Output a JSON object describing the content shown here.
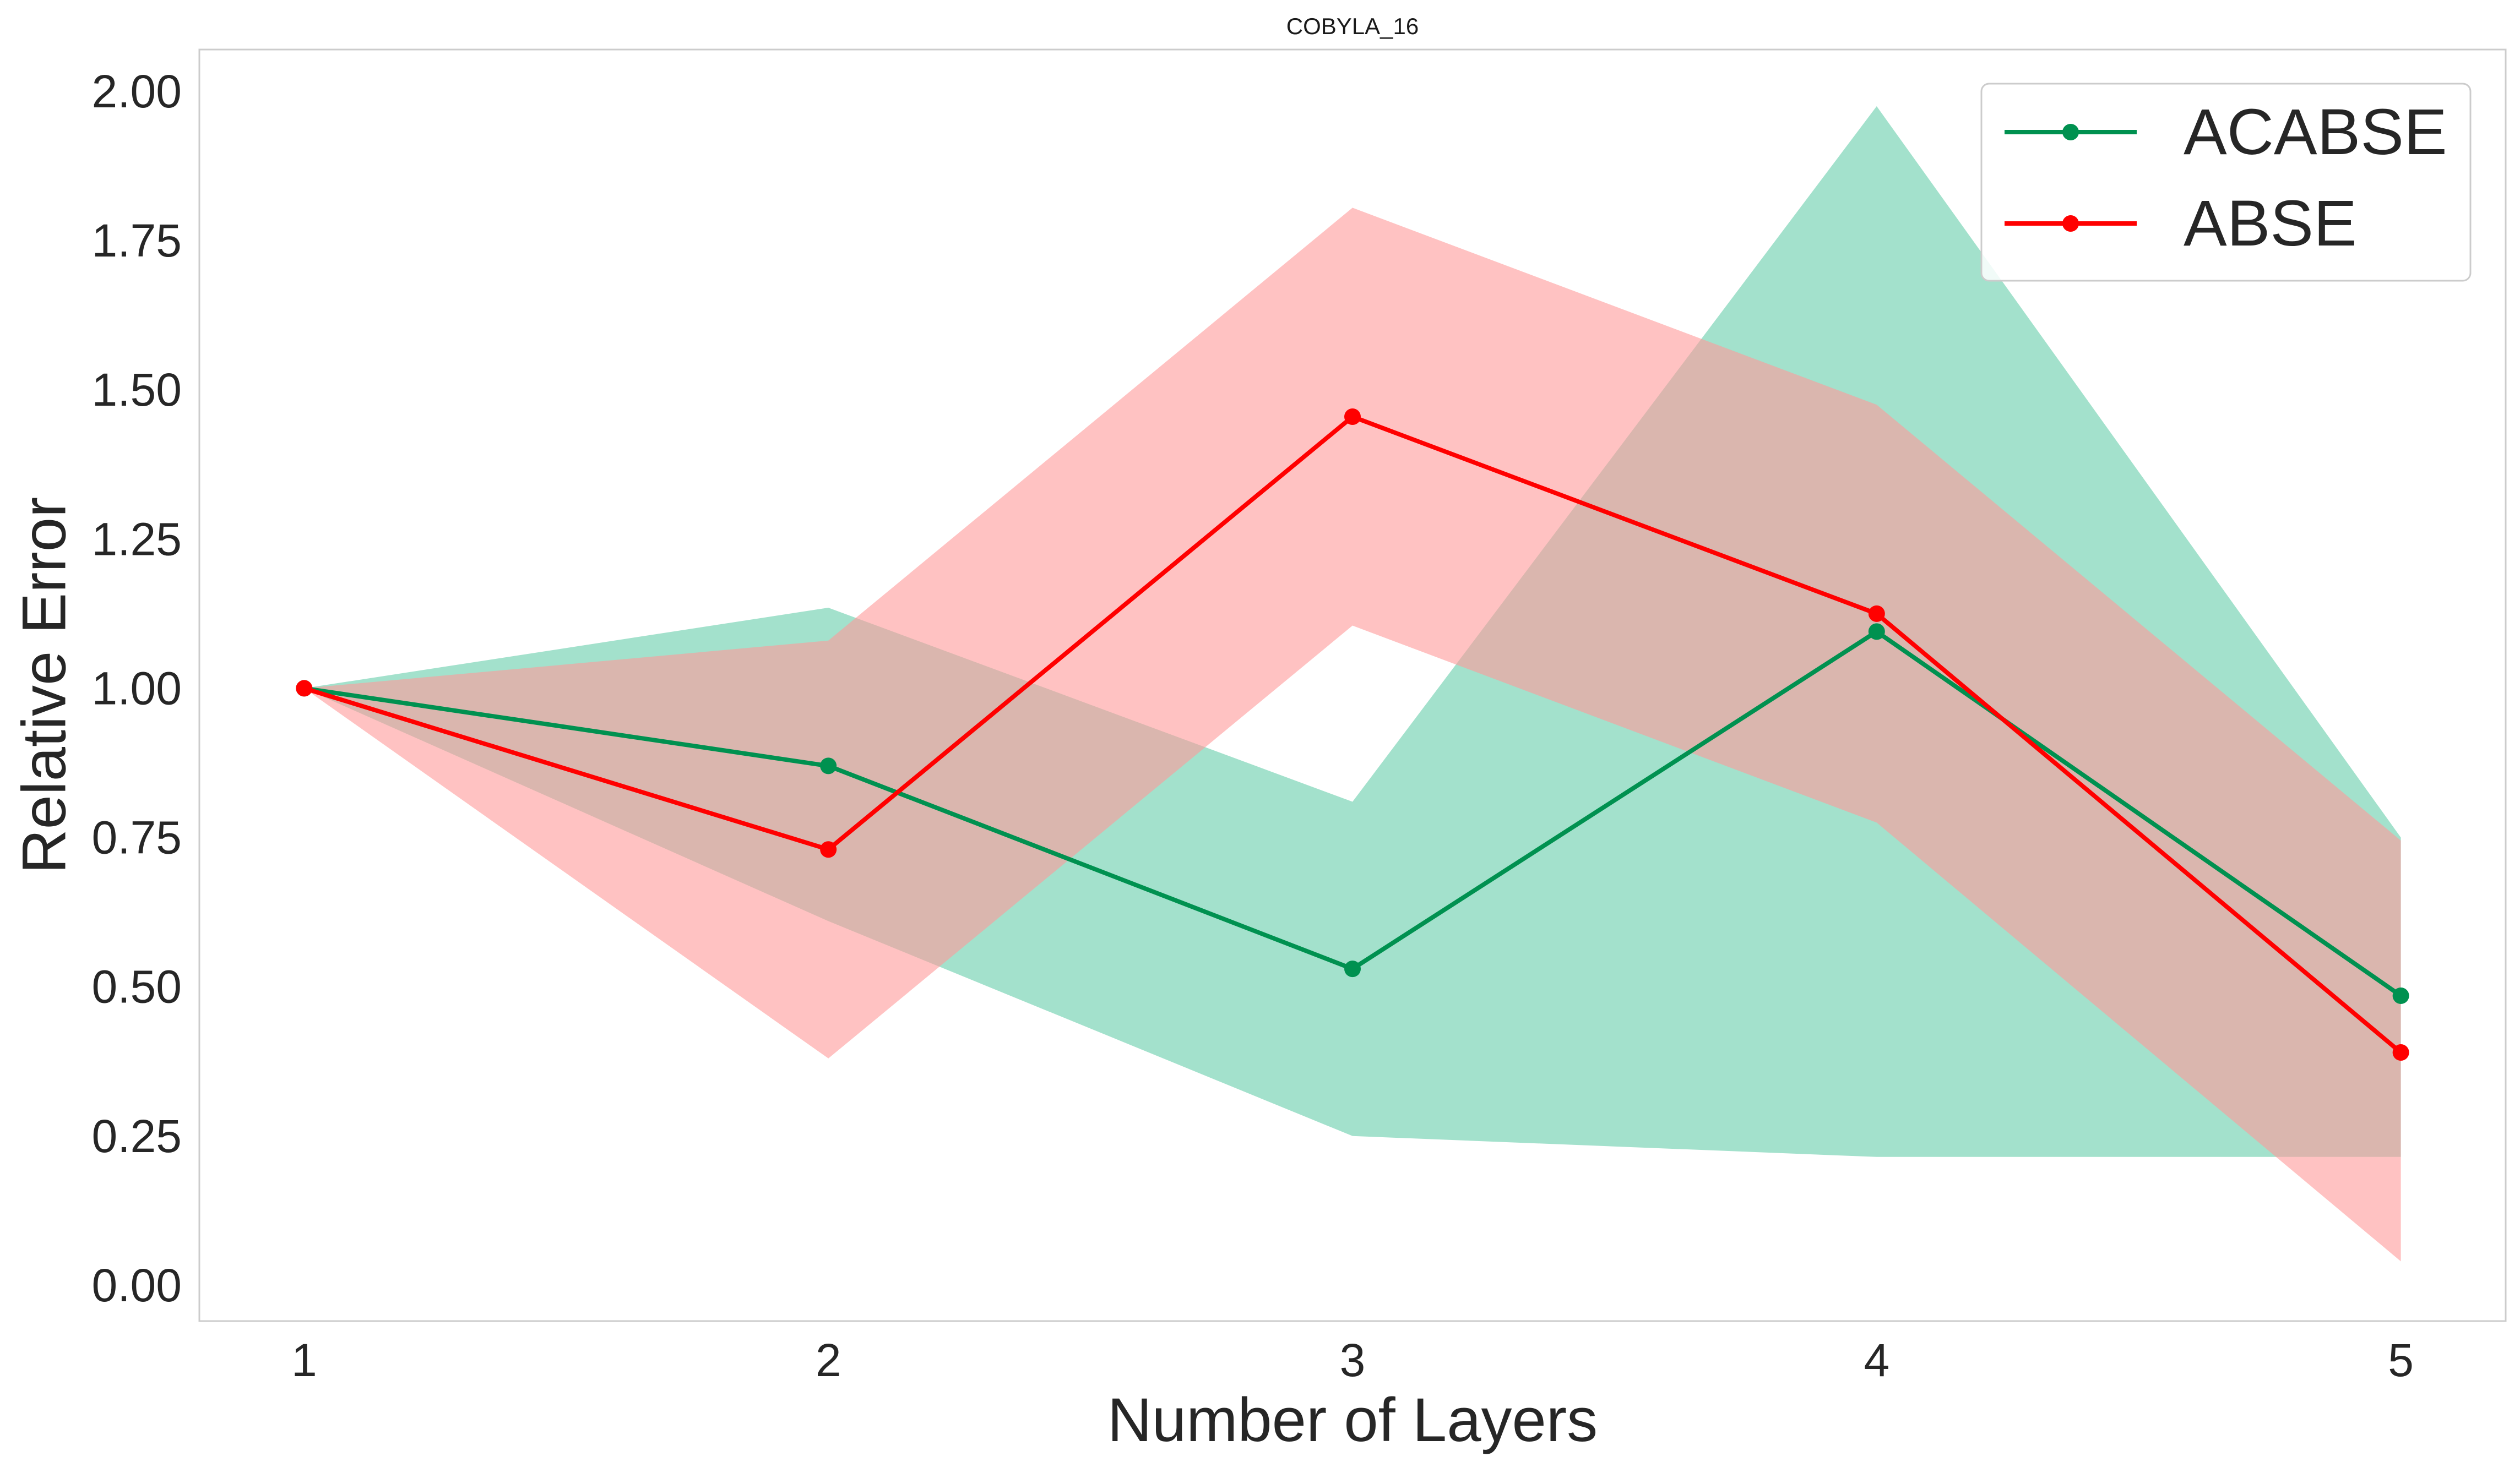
{
  "chart_data": {
    "type": "line",
    "title": "COBYLA_16",
    "xlabel": "Number of Layers",
    "ylabel": "Relative Error",
    "x": [
      1,
      2,
      3,
      4,
      5
    ],
    "x_tick_labels": [
      "1",
      "2",
      "3",
      "4",
      "5"
    ],
    "y_ticks": [
      0.0,
      0.25,
      0.5,
      0.75,
      1.0,
      1.25,
      1.5,
      1.75,
      2.0
    ],
    "y_tick_labels": [
      "0.00",
      "0.25",
      "0.50",
      "0.75",
      "1.00",
      "1.25",
      "1.50",
      "1.75",
      "2.00"
    ],
    "xlim": [
      0.8,
      5.2
    ],
    "ylim": [
      -0.06,
      2.07
    ],
    "grid": false,
    "legend_position": "top-right",
    "series": [
      {
        "name": "ACABSE",
        "color": "#009150",
        "band_color": "#66cdaa",
        "values": [
          1.0,
          0.87,
          0.53,
          1.095,
          0.485
        ],
        "lower": [
          1.0,
          0.61,
          0.25,
          0.215,
          0.215
        ],
        "upper": [
          1.0,
          1.135,
          0.81,
          1.975,
          0.75
        ]
      },
      {
        "name": "ABSE",
        "color": "#ff0000",
        "band_color": "#ff9999",
        "values": [
          1.0,
          0.73,
          1.455,
          1.125,
          0.39
        ],
        "lower": [
          1.0,
          0.38,
          1.105,
          0.775,
          0.04
        ],
        "upper": [
          1.0,
          1.08,
          1.805,
          1.475,
          0.745
        ]
      }
    ]
  }
}
